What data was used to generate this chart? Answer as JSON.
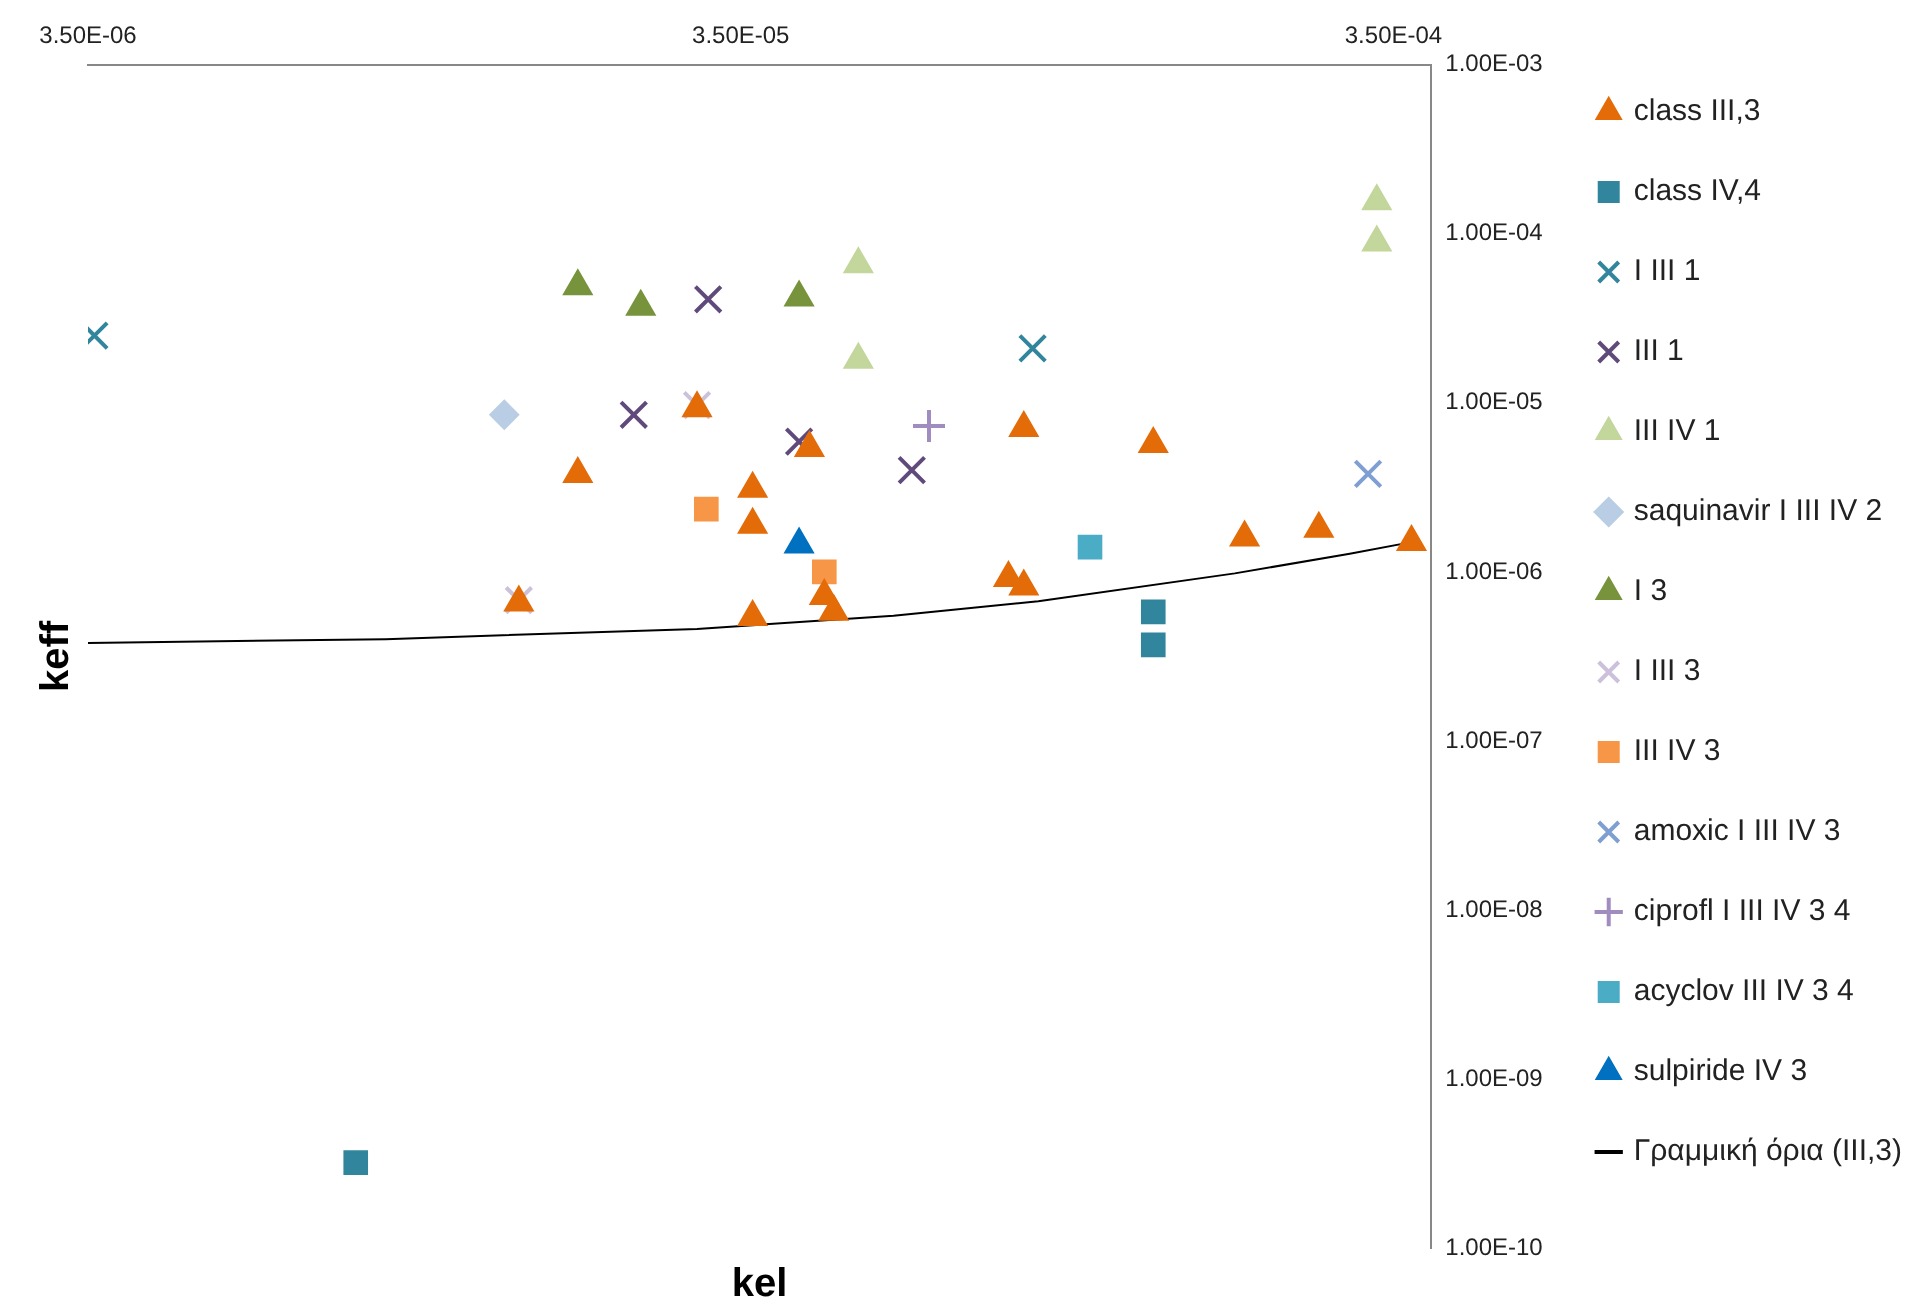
{
  "chart_data": {
    "type": "scatter",
    "xlabel": "kel",
    "ylabel": "keff",
    "log": "xy",
    "grid": false,
    "legend": "right",
    "xlim": [
      3.5e-06,
      0.0004
    ],
    "xticks": [
      {
        "value": 3.5e-06,
        "label": "3.50E-06"
      },
      {
        "value": 3.5e-05,
        "label": "3.50E-05"
      },
      {
        "value": 0.00035,
        "label": "3.50E-04"
      }
    ],
    "ylim": [
      1e-10,
      0.001
    ],
    "yticks": [
      {
        "value": 0.001,
        "label": "1.00E-03"
      },
      {
        "value": 0.0001,
        "label": "1.00E-04"
      },
      {
        "value": 1e-05,
        "label": "1.00E-05"
      },
      {
        "value": 1e-06,
        "label": "1.00E-06"
      },
      {
        "value": 1e-07,
        "label": "1.00E-07"
      },
      {
        "value": 1e-08,
        "label": "1.00E-08"
      },
      {
        "value": 1e-09,
        "label": "1.00E-09"
      },
      {
        "value": 1e-10,
        "label": "1.00E-10"
      }
    ],
    "series": [
      {
        "name": "class III,3",
        "color": "#e36c09",
        "marker": "triangle",
        "x": [
          1.97e-05,
          1.6e-05,
          3e-05,
          3.65e-05,
          3.65e-05,
          3.65e-05,
          4.46e-05,
          4.7e-05,
          4.86e-05,
          9e-05,
          9.5e-05,
          9.5e-05,
          0.00015,
          0.000207,
          0.000269,
          0.000373
        ],
        "values": [
          3.8e-06,
          6.6e-07,
          9.3e-06,
          3.1e-06,
          1.9e-06,
          5.4e-07,
          5.4e-06,
          7.2e-07,
          5.8e-07,
          9.2e-07,
          8.2e-07,
          7.1e-06,
          5.7e-06,
          1.6e-06,
          1.8e-06,
          1.5e-06
        ]
      },
      {
        "name": "class IV,4",
        "color": "#31859c",
        "marker": "square",
        "x": [
          9e-06,
          0.00015,
          0.00015
        ],
        "values": [
          3.2e-10,
          5.8e-07,
          3.7e-07
        ]
      },
      {
        "name": "I III 1",
        "color": "#31859c",
        "marker": "cross",
        "x": [
          3.58e-06,
          9.8e-05
        ],
        "values": [
          2.5e-05,
          2.1e-05
        ]
      },
      {
        "name": "III 1",
        "color": "#604a7b",
        "marker": "cross",
        "x": [
          3.12e-05,
          2.4e-05,
          4.3e-05,
          6.4e-05
        ],
        "values": [
          4.1e-05,
          8.5e-06,
          5.9e-06,
          4e-06
        ]
      },
      {
        "name": "III IV 1",
        "color": "#c3d69b",
        "marker": "triangle",
        "x": [
          0.00033,
          0.00033,
          5.3e-05,
          5.3e-05
        ],
        "values": [
          0.000156,
          8.9e-05,
          6.6e-05,
          1.8e-05
        ]
      },
      {
        "name": "saquinavir I III IV 2",
        "color": "#b9cde5",
        "marker": "diamond",
        "x": [
          1.52e-05
        ],
        "values": [
          8.5e-06
        ]
      },
      {
        "name": "I 3",
        "color": "#77933c",
        "marker": "triangle",
        "x": [
          1.97e-05,
          2.46e-05,
          4.3e-05
        ],
        "values": [
          4.9e-05,
          3.7e-05,
          4.2e-05
        ]
      },
      {
        "name": "I III 3",
        "color": "#ccc1da",
        "marker": "cross",
        "x": [
          1.6e-05,
          3e-05
        ],
        "values": [
          6.8e-07,
          9.7e-06
        ]
      },
      {
        "name": "III IV 3",
        "color": "#f79646",
        "marker": "square",
        "x": [
          3.1e-05,
          4.7e-05
        ],
        "values": [
          2.35e-06,
          1e-06
        ]
      },
      {
        "name": "amoxic I III IV 3",
        "color": "#7f9fd3",
        "marker": "cross",
        "x": [
          0.00032
        ],
        "values": [
          3.8e-06
        ]
      },
      {
        "name": "ciprofl I III IV 3 4",
        "color": "#a08cbf",
        "marker": "plus",
        "x": [
          6.8e-05
        ],
        "values": [
          7.3e-06
        ]
      },
      {
        "name": "acyclov III IV 3 4",
        "color": "#4bacc6",
        "marker": "square",
        "x": [
          0.00012
        ],
        "values": [
          1.4e-06
        ]
      },
      {
        "name": "sulpiride IV 3",
        "color": "#0070c0",
        "marker": "triangle",
        "x": [
          4.3e-05
        ],
        "values": [
          1.45e-06
        ]
      },
      {
        "name": "Γραμμική όρια (III,3)",
        "type": "line",
        "color": "#000000",
        "marker": "none",
        "x": [
          3.5e-06,
          1e-05,
          3e-05,
          6e-05,
          0.0001,
          0.0002,
          0.0003,
          0.000373
        ],
        "values": [
          3.8e-07,
          4e-07,
          4.6e-07,
          5.5e-07,
          6.7e-07,
          9.8e-07,
          1.28e-06,
          1.5e-06
        ]
      }
    ]
  }
}
